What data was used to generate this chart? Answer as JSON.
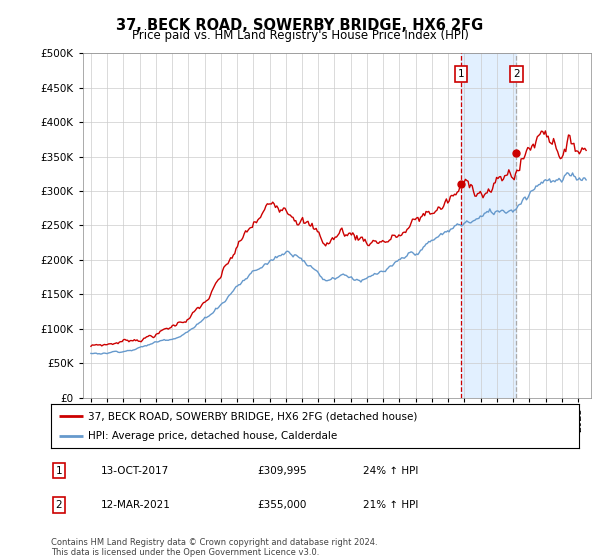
{
  "title": "37, BECK ROAD, SOWERBY BRIDGE, HX6 2FG",
  "subtitle": "Price paid vs. HM Land Registry's House Price Index (HPI)",
  "red_label": "37, BECK ROAD, SOWERBY BRIDGE, HX6 2FG (detached house)",
  "blue_label": "HPI: Average price, detached house, Calderdale",
  "annotation1_num": "1",
  "annotation1_date": "13-OCT-2017",
  "annotation1_price": "£309,995",
  "annotation1_hpi": "24% ↑ HPI",
  "annotation2_num": "2",
  "annotation2_date": "12-MAR-2021",
  "annotation2_price": "£355,000",
  "annotation2_hpi": "21% ↑ HPI",
  "footnote": "Contains HM Land Registry data © Crown copyright and database right 2024.\nThis data is licensed under the Open Government Licence v3.0.",
  "red_color": "#cc0000",
  "blue_color": "#6699cc",
  "shaded_color": "#ddeeff",
  "vline1_color": "#cc0000",
  "vline2_color": "#aaaaaa",
  "ylim": [
    0,
    500000
  ],
  "yticks": [
    0,
    50000,
    100000,
    150000,
    200000,
    250000,
    300000,
    350000,
    400000,
    450000,
    500000
  ],
  "sale1_x": 2017.79,
  "sale1_y": 309995,
  "sale2_x": 2021.19,
  "sale2_y": 355000,
  "shade_x1": 2017.79,
  "shade_x2": 2021.19,
  "xlim_start": 1994.5,
  "xlim_end": 2025.8
}
